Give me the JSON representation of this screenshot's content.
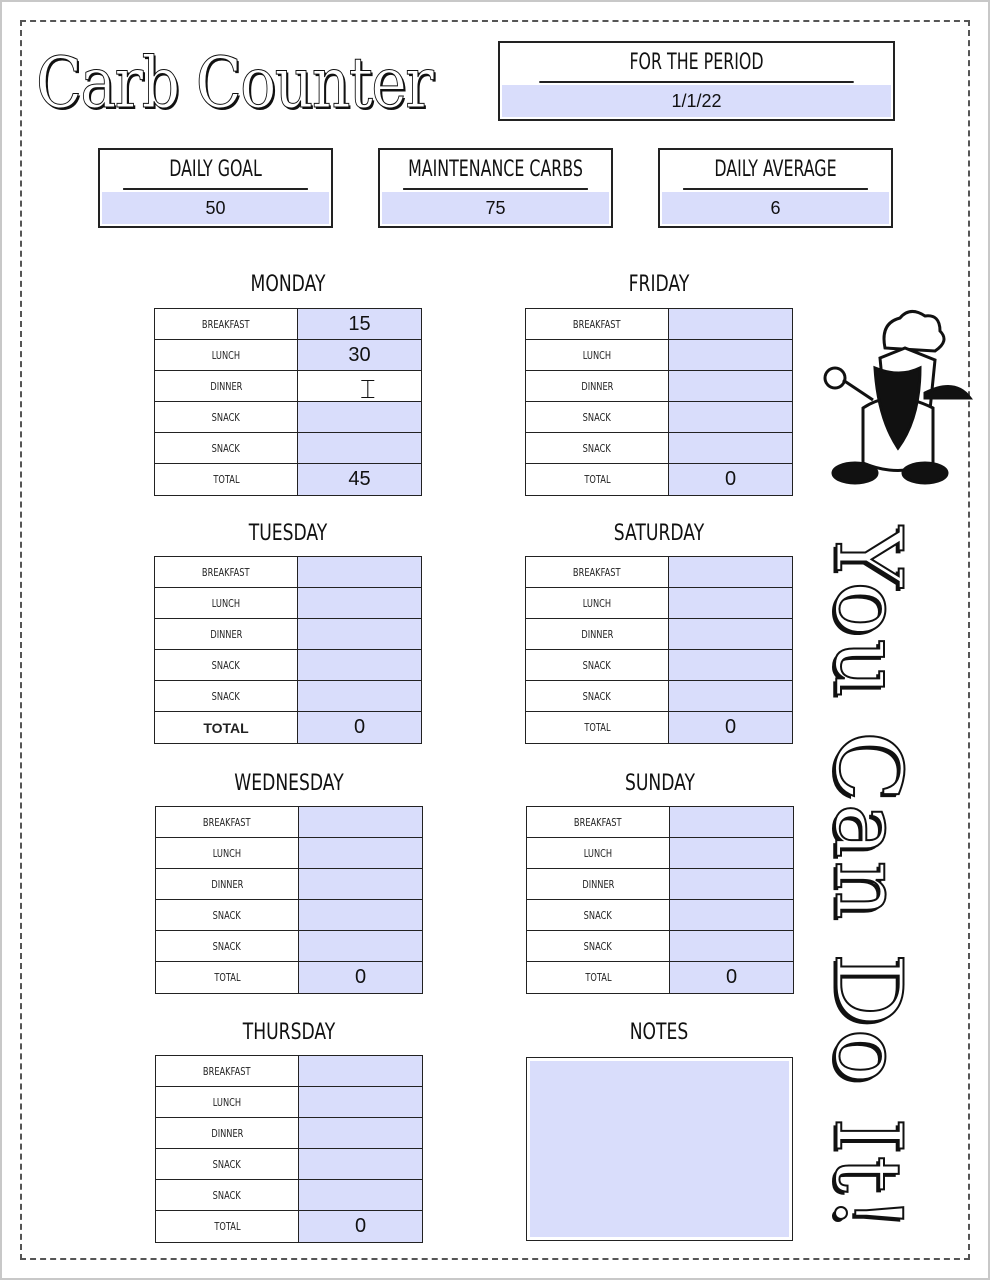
{
  "title": "Carb Counter",
  "period": {
    "label": "FOR THE PERIOD",
    "value": "1/1/22"
  },
  "stats": [
    {
      "label": "DAILY GOAL",
      "value": "50"
    },
    {
      "label": "MAINTENANCE CARBS",
      "value": "75"
    },
    {
      "label": "DAILY AVERAGE",
      "value": "6"
    }
  ],
  "row_labels": [
    "BREAKFAST",
    "LUNCH",
    "DINNER",
    "SNACK",
    "SNACK",
    "TOTAL"
  ],
  "days": [
    {
      "name": "MONDAY",
      "values": [
        "15",
        "30",
        "",
        "",
        "",
        "45"
      ]
    },
    {
      "name": "FRIDAY",
      "values": [
        "",
        "",
        "",
        "",
        "",
        "0"
      ]
    },
    {
      "name": "TUESDAY",
      "values": [
        "",
        "",
        "",
        "",
        "",
        "0"
      ]
    },
    {
      "name": "SATURDAY",
      "values": [
        "",
        "",
        "",
        "",
        "",
        "0"
      ]
    },
    {
      "name": "WEDNESDAY",
      "values": [
        "",
        "",
        "",
        "",
        "",
        "0"
      ]
    },
    {
      "name": "SUNDAY",
      "values": [
        "",
        "",
        "",
        "",
        "",
        "0"
      ]
    },
    {
      "name": "THURSDAY",
      "values": [
        "",
        "",
        "",
        "",
        "",
        "0"
      ]
    }
  ],
  "notes": {
    "label": "NOTES",
    "value": ""
  },
  "slogan": "You Can Do It!",
  "colors": {
    "field_fill": "#d9ddfb",
    "border": "#222222"
  },
  "icons": {
    "mascot": "chef-gnome-illustration",
    "cursor": "text-cursor-icon"
  }
}
